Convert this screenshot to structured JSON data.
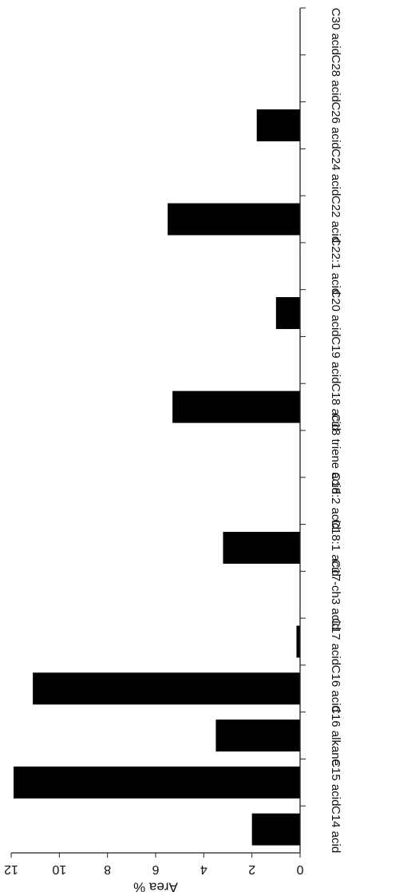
{
  "chart_data": {
    "type": "bar",
    "orientation": "horizontal, image rotated 180 degrees",
    "categories": [
      "C14 acid",
      "C15 acid",
      "C16 alkane",
      "C16 acid",
      "C17 acid",
      "C17-ch3 acid",
      "C18:1 acid",
      "C18:2 acid",
      "C18 triene acid",
      "C18 acid",
      "C19 acid",
      "C20 acid",
      "C22:1 acid",
      "C22 acid",
      "C24 acid",
      "C26 acid",
      "C28 acid",
      "C30 acid"
    ],
    "values": [
      2.0,
      11.9,
      3.5,
      11.1,
      0.15,
      0,
      3.2,
      0,
      0,
      5.3,
      0,
      1.0,
      0,
      5.5,
      0,
      1.8,
      0,
      0
    ],
    "ylabel": "Area %",
    "ylim": [
      0,
      12
    ],
    "yticks": [
      0,
      2,
      4,
      6,
      8,
      10,
      12
    ],
    "ytick_labels": [
      "0",
      "2",
      "4",
      "6",
      "8",
      "10",
      "12"
    ],
    "grid": false,
    "bar_color": "#000000",
    "axis_color": "#222222"
  }
}
